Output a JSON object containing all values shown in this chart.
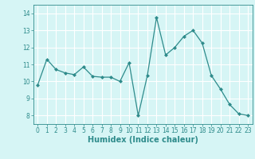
{
  "x": [
    0,
    1,
    2,
    3,
    4,
    5,
    6,
    7,
    8,
    9,
    10,
    11,
    12,
    13,
    14,
    15,
    16,
    17,
    18,
    19,
    20,
    21,
    22,
    23
  ],
  "y": [
    9.8,
    11.3,
    10.7,
    10.5,
    10.4,
    10.85,
    10.3,
    10.25,
    10.25,
    10.0,
    11.1,
    8.0,
    10.35,
    13.75,
    11.55,
    12.0,
    12.65,
    13.0,
    12.25,
    10.35,
    9.55,
    8.65,
    8.1,
    8.0
  ],
  "line_color": "#2e8b8b",
  "marker": "D",
  "marker_size": 2.0,
  "background_color": "#d6f5f5",
  "grid_color": "#ffffff",
  "xlabel": "Humidex (Indice chaleur)",
  "xlabel_fontsize": 7,
  "ylim": [
    7.5,
    14.5
  ],
  "xlim": [
    -0.5,
    23.5
  ],
  "yticks": [
    8,
    9,
    10,
    11,
    12,
    13,
    14
  ],
  "xticks": [
    0,
    1,
    2,
    3,
    4,
    5,
    6,
    7,
    8,
    9,
    10,
    11,
    12,
    13,
    14,
    15,
    16,
    17,
    18,
    19,
    20,
    21,
    22,
    23
  ],
  "tick_fontsize": 5.5,
  "tick_color": "#2e8b8b",
  "spine_color": "#2e8b8b"
}
